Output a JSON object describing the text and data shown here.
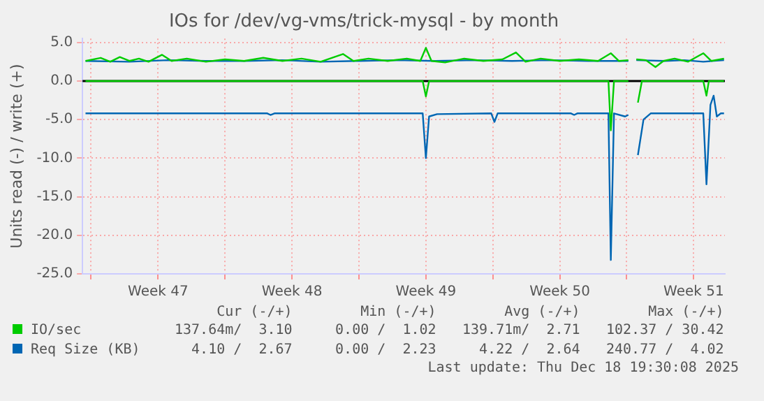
{
  "chart_data": {
    "type": "line",
    "title": "IOs for /dev/vg-vms/trick-mysql - by month",
    "ylabel": "Units read (-) / write (+)",
    "xlim": [
      "2025-11-16T13:12",
      "2025-12-20T03:07"
    ],
    "ylim": [
      -25,
      5.5
    ],
    "xticks": [
      {
        "value": "2025-11-17T00:00",
        "label": null
      },
      {
        "value": "2025-11-20T12:00",
        "label": "Week 47"
      },
      {
        "value": "2025-11-24T00:00",
        "label": null
      },
      {
        "value": "2025-11-27T12:00",
        "label": "Week 48"
      },
      {
        "value": "2025-12-01T00:00",
        "label": null
      },
      {
        "value": "2025-12-04T12:00",
        "label": "Week 49"
      },
      {
        "value": "2025-12-08T00:00",
        "label": null
      },
      {
        "value": "2025-12-11T12:00",
        "label": "Week 50"
      },
      {
        "value": "2025-12-15T00:00",
        "label": null
      },
      {
        "value": "2025-12-18T12:00",
        "label": "Week 51"
      }
    ],
    "yticks": [
      {
        "value": -25,
        "label": "-25.0"
      },
      {
        "value": -20,
        "label": "-20.0"
      },
      {
        "value": -15,
        "label": "-15.0"
      },
      {
        "value": -10,
        "label": "-10.0"
      },
      {
        "value": -5,
        "label": "-5.0"
      },
      {
        "value": 0,
        "label": "0.0"
      },
      {
        "value": 5,
        "label": "5.0"
      }
    ],
    "grid": true,
    "legend": "bottom",
    "marker": "none",
    "line_style": "solid",
    "ref_lines": [
      {
        "axis": "y",
        "value": 0,
        "color": "#000000"
      }
    ],
    "series": [
      {
        "name": "IO/sec",
        "color": "#00cc00",
        "x": [
          "2025-11-16T17:00",
          "2025-11-17T12:00",
          "2025-11-18T00:00",
          "2025-11-18T12:00",
          "2025-11-19T00:00",
          "2025-11-19T12:00",
          "2025-11-20T00:00",
          "2025-11-20T17:00",
          "2025-11-21T05:00",
          "2025-11-22T00:00",
          "2025-11-23T00:00",
          "2025-11-24T00:00",
          "2025-11-25T00:00",
          "2025-11-26T00:00",
          "2025-11-27T00:00",
          "2025-11-28T00:00",
          "2025-11-29T00:00",
          "2025-11-30T04:00",
          "2025-11-30T17:00",
          "2025-12-01T12:00",
          "2025-12-02T12:00",
          "2025-12-03T12:00",
          "2025-12-04T05:00",
          "2025-12-04T12:00",
          "2025-12-04T19:00",
          "2025-12-05T12:00",
          "2025-12-06T12:00",
          "2025-12-07T12:00",
          "2025-12-08T12:00",
          "2025-12-09T05:00",
          "2025-12-09T17:00",
          "2025-12-10T12:00",
          "2025-12-11T12:00",
          "2025-12-12T12:00",
          "2025-12-13T12:00",
          "2025-12-14T04:00",
          "2025-12-14T14:00",
          "2025-12-15T02:00",
          "2025-12-15T07:00",
          "2025-12-15T12:00",
          "2025-12-16T00:00",
          "2025-12-16T12:00",
          "2025-12-16T22:00",
          "2025-12-17T12:00",
          "2025-12-18T05:00",
          "2025-12-19T00:00",
          "2025-12-19T10:00",
          "2025-12-20T02:00"
        ],
        "values": [
          2.6,
          3.0,
          2.5,
          3.1,
          2.6,
          2.9,
          2.5,
          3.4,
          2.6,
          2.9,
          2.5,
          2.8,
          2.6,
          3.0,
          2.6,
          2.9,
          2.5,
          3.5,
          2.6,
          2.9,
          2.6,
          2.9,
          2.6,
          4.3,
          2.6,
          2.4,
          2.9,
          2.6,
          2.8,
          3.7,
          2.5,
          2.9,
          2.6,
          2.8,
          2.6,
          3.6,
          2.6,
          2.7,
          null,
          2.8,
          2.7,
          1.8,
          2.6,
          2.9,
          2.5,
          3.6,
          2.6,
          2.9
        ]
      },
      {
        "color": "#00cc00",
        "x": [
          "2025-11-16T17:00",
          "2025-12-04T08:00",
          "2025-12-04T12:00",
          "2025-12-04T16:00",
          "2025-12-14T01:00",
          "2025-12-14T04:00",
          "2025-12-14T08:00",
          "2025-12-15T02:00",
          "2025-12-15T07:00",
          "2025-12-15T14:00",
          "2025-12-15T19:00",
          "2025-12-19T00:00",
          "2025-12-19T04:00",
          "2025-12-19T07:00",
          "2025-12-20T02:00"
        ],
        "values": [
          0,
          0,
          -2.0,
          0,
          0,
          -6.4,
          0,
          0,
          null,
          -2.8,
          0,
          0,
          -1.9,
          0,
          0
        ]
      },
      {
        "name": "Req Size (KB)",
        "color": "#0066b3",
        "x": [
          "2025-11-16T17:00",
          "2025-11-19T00:00",
          "2025-11-21T00:00",
          "2025-11-23T00:00",
          "2025-11-25T00:00",
          "2025-11-27T00:00",
          "2025-11-29T00:00",
          "2025-12-01T00:00",
          "2025-12-03T00:00",
          "2025-12-05T00:00",
          "2025-12-07T00:00",
          "2025-12-09T00:00",
          "2025-12-11T00:00",
          "2025-12-13T00:00",
          "2025-12-15T02:00",
          "2025-12-15T07:00",
          "2025-12-15T12:00",
          "2025-12-17T00:00",
          "2025-12-18T00:00",
          "2025-12-19T00:00",
          "2025-12-20T02:00"
        ],
        "values": [
          2.6,
          2.5,
          2.7,
          2.6,
          2.6,
          2.7,
          2.5,
          2.6,
          2.7,
          2.6,
          2.7,
          2.6,
          2.7,
          2.6,
          2.6,
          null,
          2.7,
          2.6,
          2.7,
          2.5,
          2.7
        ]
      },
      {
        "color": "#0066b3",
        "x": [
          "2025-11-16T17:00",
          "2025-11-26T05:00",
          "2025-11-26T09:00",
          "2025-11-26T14:00",
          "2025-12-04T08:00",
          "2025-12-04T12:00",
          "2025-12-04T16:00",
          "2025-12-05T02:00",
          "2025-12-07T22:00",
          "2025-12-08T02:00",
          "2025-12-08T06:00",
          "2025-12-12T02:00",
          "2025-12-12T06:00",
          "2025-12-12T10:00",
          "2025-12-14T01:00",
          "2025-12-14T04:00",
          "2025-12-14T08:00",
          "2025-12-14T22:00",
          "2025-12-15T02:00",
          "2025-12-15T07:00",
          "2025-12-15T14:00",
          "2025-12-15T21:00",
          "2025-12-16T06:00",
          "2025-12-19T00:00",
          "2025-12-19T04:00",
          "2025-12-19T09:00",
          "2025-12-19T13:00",
          "2025-12-19T17:00",
          "2025-12-19T22:00",
          "2025-12-20T02:00"
        ],
        "values": [
          -4.2,
          -4.2,
          -4.4,
          -4.2,
          -4.2,
          -10.0,
          -4.6,
          -4.3,
          -4.2,
          -5.3,
          -4.2,
          -4.2,
          -4.4,
          -4.2,
          -4.2,
          -23.2,
          -4.2,
          -4.6,
          -4.4,
          null,
          -9.6,
          -5.0,
          -4.2,
          -4.2,
          -13.4,
          -3.1,
          -1.9,
          -4.6,
          -4.2,
          -4.2
        ]
      }
    ],
    "annotations": [
      "Cur (-/+)",
      "Min (-/+)",
      "Avg (-/+)",
      "Max (-/+)",
      "137.64m/  3.10",
      "0.00 /  1.02",
      "139.71m/  2.71",
      "102.37 / 30.42",
      "4.10 /  2.67",
      "0.00 /  2.23",
      "4.22 /  2.64",
      "240.77 /  4.02",
      "Last update: Thu Dec 18 19:30:08 2025"
    ]
  }
}
